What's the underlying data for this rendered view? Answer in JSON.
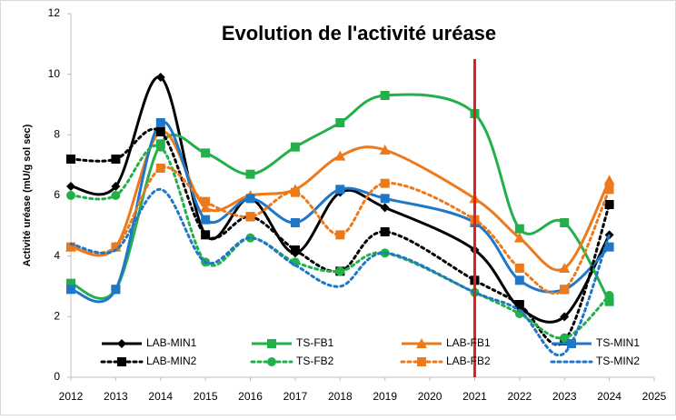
{
  "chart_data": {
    "type": "line",
    "title": "Evolution de l'activité uréase",
    "y_label": "Activité uréase (mU/g sol sec)",
    "x": [
      2012,
      2013,
      2014,
      2015,
      2016,
      2017,
      2018,
      2019,
      2021,
      2022,
      2023,
      2024
    ],
    "xlim": [
      2012,
      2025
    ],
    "xticks": [
      2012,
      2013,
      2014,
      2015,
      2016,
      2017,
      2018,
      2019,
      2020,
      2021,
      2022,
      2023,
      2024,
      2025
    ],
    "ylim": [
      0,
      12
    ],
    "yticks": [
      0,
      2,
      4,
      6,
      8,
      10,
      12
    ],
    "vline": {
      "x": 2021,
      "color": "#e02020"
    },
    "series": [
      {
        "name": "LAB-MIN1",
        "color": "#000000",
        "marker": "diamond",
        "line_style": "solid",
        "values": [
          6.3,
          6.3,
          9.9,
          4.7,
          5.9,
          4.1,
          6.1,
          5.6,
          4.2,
          2.3,
          2.0,
          4.7
        ]
      },
      {
        "name": "TS-FB1",
        "color": "#22b04a",
        "marker": "square",
        "line_style": "solid",
        "values": [
          3.1,
          2.9,
          7.7,
          7.4,
          6.7,
          7.6,
          8.4,
          9.3,
          8.7,
          4.9,
          5.1,
          2.5
        ]
      },
      {
        "name": "LAB-FB1",
        "color": "#ec7a1c",
        "marker": "triangle",
        "line_style": "solid",
        "values": [
          4.3,
          4.3,
          8.1,
          5.6,
          6.0,
          6.2,
          7.3,
          7.5,
          5.9,
          4.6,
          3.6,
          6.5
        ]
      },
      {
        "name": "TS-MIN1",
        "color": "#1f77c8",
        "marker": "square",
        "line_style": "solid",
        "values": [
          2.9,
          2.9,
          8.4,
          5.2,
          5.9,
          5.1,
          6.2,
          5.9,
          5.1,
          3.2,
          2.9,
          4.3
        ]
      },
      {
        "name": "LAB-MIN2",
        "color": "#000000",
        "marker": "square",
        "line_style": "dotted",
        "values": [
          7.2,
          7.2,
          8.1,
          4.7,
          5.3,
          4.2,
          3.5,
          4.8,
          3.2,
          2.4,
          1.2,
          5.7
        ]
      },
      {
        "name": "TS-FB2",
        "color": "#22b04a",
        "marker": "circle",
        "line_style": "dotted",
        "values": [
          6.0,
          6.0,
          7.6,
          3.8,
          4.6,
          3.8,
          3.5,
          4.1,
          2.8,
          2.1,
          1.3,
          2.7
        ]
      },
      {
        "name": "LAB-FB2",
        "color": "#ec7a1c",
        "marker": "square",
        "line_style": "dotted",
        "values": [
          4.3,
          4.3,
          6.9,
          5.8,
          5.3,
          6.1,
          4.7,
          6.4,
          5.2,
          3.6,
          2.9,
          6.2
        ]
      },
      {
        "name": "TS-MIN2",
        "color": "#1f77c8",
        "marker": "none",
        "line_style": "dotted",
        "values": [
          4.4,
          4.2,
          6.2,
          3.8,
          4.6,
          3.7,
          3.0,
          4.1,
          2.8,
          2.2,
          0.8,
          4.7
        ]
      }
    ]
  }
}
